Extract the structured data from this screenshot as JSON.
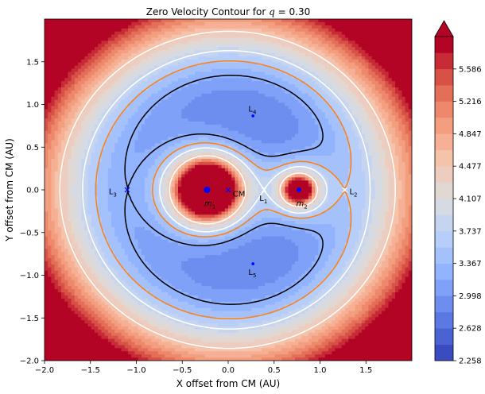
{
  "chart_data": {
    "type": "heatmap",
    "title": "Zero Velocity Contour for q = 0.30",
    "title_prefix": "Zero Velocity Contour for ",
    "title_var": "q",
    "title_eq": " = 0.30",
    "xlabel": "X offset from CM (AU)",
    "ylabel": "Y offset from CM (AU)",
    "xlim": [
      -2.0,
      2.0
    ],
    "ylim": [
      -2.0,
      2.0
    ],
    "x_ticks": [
      -2.0,
      -1.5,
      -1.0,
      -0.5,
      0.0,
      0.5,
      1.0,
      1.5
    ],
    "y_ticks": [
      -2.0,
      -1.5,
      -1.0,
      -0.5,
      0.0,
      0.5,
      1.0,
      1.5
    ],
    "x_tick_labels": [
      "−2.0",
      "−1.5",
      "−1.0",
      "−0.5",
      "0.0",
      "0.5",
      "1.0",
      "1.5"
    ],
    "y_tick_labels": [
      "−2.0",
      "−1.5",
      "−1.0",
      "−0.5",
      "0.0",
      "0.5",
      "1.0",
      "1.5"
    ],
    "grid": false,
    "q": 0.3,
    "colormap": "coolwarm",
    "colorbar": {
      "min": 2.258,
      "max": 5.956,
      "extend": "max",
      "levels": [
        2.258,
        2.443,
        2.628,
        2.813,
        2.998,
        3.183,
        3.367,
        3.552,
        3.737,
        3.922,
        4.107,
        4.292,
        4.477,
        4.662,
        4.847,
        5.031,
        5.216,
        5.401,
        5.586,
        5.771
      ],
      "tick_values": [
        2.258,
        2.628,
        2.998,
        3.367,
        3.737,
        4.107,
        4.477,
        4.847,
        5.216,
        5.586
      ],
      "tick_labels": [
        "2.258",
        "2.628",
        "2.998",
        "3.367",
        "3.737",
        "4.107",
        "4.477",
        "4.847",
        "5.216",
        "5.586"
      ]
    },
    "contour_lines": [
      {
        "color": "#ffffff",
        "level": "L1"
      },
      {
        "color": "#ff7f0e",
        "level": "L2"
      },
      {
        "color": "#000000",
        "level": "L3"
      },
      {
        "color": "#ffffff",
        "level": "outer"
      }
    ],
    "points": [
      {
        "label": "m",
        "sub": "1",
        "x": -0.23,
        "y": 0.0,
        "label_dx": -0.03,
        "label_dy": -0.19,
        "marker": "dot-large",
        "color": "#0000ff"
      },
      {
        "label": "m",
        "sub": "2",
        "x": 0.77,
        "y": 0.0,
        "label_dx": -0.03,
        "label_dy": -0.19,
        "marker": "dot",
        "color": "#0000ff"
      },
      {
        "label": "CM",
        "sub": "",
        "x": 0.0,
        "y": 0.0,
        "label_dx": 0.05,
        "label_dy": -0.08,
        "marker": "x",
        "color": "#0000ff"
      },
      {
        "label": "L",
        "sub": "1",
        "x": 0.39,
        "y": 0.0,
        "label_dx": -0.05,
        "label_dy": -0.13,
        "marker": "x",
        "color": "#ffffff"
      },
      {
        "label": "L",
        "sub": "2",
        "x": 1.27,
        "y": 0.0,
        "label_dx": 0.05,
        "label_dy": -0.05,
        "marker": "x",
        "color": "#ffffff"
      },
      {
        "label": "L",
        "sub": "3",
        "x": -1.1,
        "y": 0.0,
        "label_dx": -0.2,
        "label_dy": -0.05,
        "marker": "x",
        "color": "#0000ff"
      },
      {
        "label": "L",
        "sub": "4",
        "x": 0.27,
        "y": 0.866,
        "label_dx": -0.05,
        "label_dy": 0.05,
        "marker": "dot-small",
        "color": "#0000ff"
      },
      {
        "label": "L",
        "sub": "5",
        "x": 0.27,
        "y": -0.866,
        "label_dx": -0.05,
        "label_dy": -0.13,
        "marker": "dot-small",
        "color": "#0000ff"
      }
    ]
  }
}
